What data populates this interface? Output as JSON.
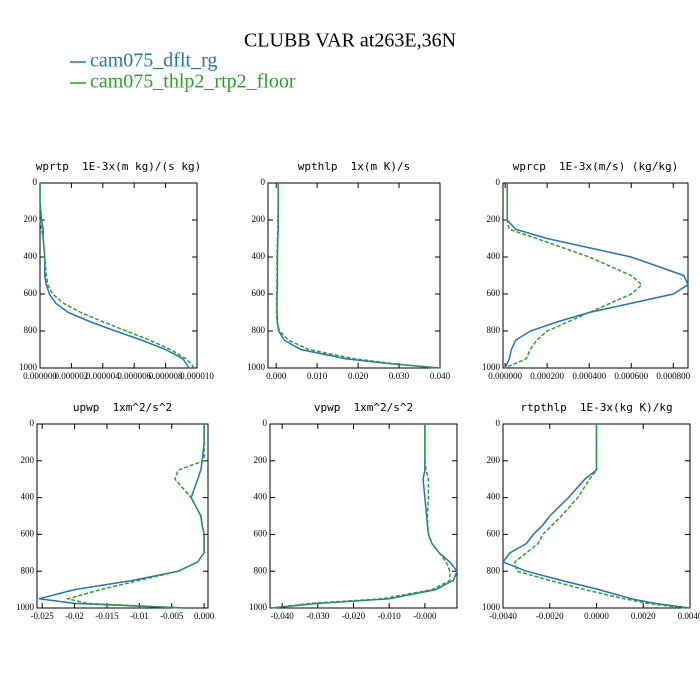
{
  "title": "CLUBB VAR at263E,36N",
  "series": [
    {
      "name": "cam075_dflt_rg",
      "color": "#1f77b4",
      "style": "solid"
    },
    {
      "name": "cam075_thlp2_rtp2_floor",
      "color": "#2ca02c",
      "style": "dashed"
    }
  ],
  "chart_data": [
    {
      "type": "line",
      "title": "wprtp  1E-3x(m kg)/(s kg)",
      "y": [
        0,
        100,
        200,
        250,
        300,
        400,
        500,
        550,
        600,
        650,
        700,
        750,
        800,
        850,
        900,
        950,
        975,
        1000
      ],
      "series": [
        {
          "values": [
            0,
            0,
            1e-07,
            2e-07,
            2e-07,
            3e-07,
            3e-07,
            4e-07,
            6e-07,
            1e-06,
            1.8e-06,
            3.2e-06,
            4.8e-06,
            6.5e-06,
            8e-06,
            9.1e-06,
            9.3e-06,
            9.5e-06
          ]
        },
        {
          "values": [
            0,
            0,
            0,
            1e-07,
            2e-07,
            3e-07,
            4e-07,
            5e-07,
            8e-07,
            1.5e-06,
            2.6e-06,
            4e-06,
            5.5e-06,
            7e-06,
            8.3e-06,
            9.3e-06,
            9.6e-06,
            9.8e-06
          ]
        }
      ],
      "xlim": [
        0,
        1e-05
      ],
      "ylim": [
        1000,
        0
      ],
      "xticks": [
        {
          "value": 0,
          "label": "0.000000"
        },
        {
          "value": 2e-06,
          "label": "0.000002"
        },
        {
          "value": 4e-06,
          "label": "0.000004"
        },
        {
          "value": 6e-06,
          "label": "0.000006"
        },
        {
          "value": 8e-06,
          "label": "0.000008"
        },
        {
          "value": 1e-05,
          "label": "0.000010"
        }
      ],
      "yticks": [
        0,
        200,
        400,
        600,
        800,
        1000
      ]
    },
    {
      "type": "line",
      "title": "wpthlp  1x(m K)/s",
      "y": [
        0,
        100,
        200,
        250,
        300,
        400,
        500,
        550,
        600,
        650,
        700,
        750,
        800,
        850,
        900,
        950,
        975,
        1000
      ],
      "series": [
        {
          "values": [
            0.0005,
            0.0005,
            0.0005,
            0.0005,
            0.0004,
            0.0003,
            0.0003,
            0.0003,
            0.0002,
            0.0002,
            0.0002,
            0.0003,
            0.0006,
            0.002,
            0.006,
            0.017,
            0.027,
            0.04
          ]
        },
        {
          "values": [
            0.0005,
            0.0005,
            0.0004,
            0.0004,
            0.0003,
            0.0002,
            0.0002,
            0.0002,
            0.0001,
            0.0001,
            0.0001,
            0.0002,
            0.0008,
            0.003,
            0.008,
            0.019,
            0.028,
            0.039
          ]
        }
      ],
      "xlim": [
        -0.002,
        0.04
      ],
      "ylim": [
        1000,
        0
      ],
      "xticks": [
        {
          "value": 0,
          "label": "0.000"
        },
        {
          "value": 0.01,
          "label": "0.010"
        },
        {
          "value": 0.02,
          "label": "0.020"
        },
        {
          "value": 0.03,
          "label": "0.030"
        },
        {
          "value": 0.04,
          "label": "0.040"
        }
      ],
      "yticks": [
        0,
        200,
        400,
        600,
        800,
        1000
      ]
    },
    {
      "type": "line",
      "title": "wprcp  1E-3x(m/s) (kg/kg)",
      "y": [
        0,
        100,
        200,
        250,
        300,
        400,
        500,
        550,
        600,
        650,
        700,
        750,
        800,
        850,
        900,
        950,
        975,
        1000
      ],
      "series": [
        {
          "values": [
            1e-05,
            1e-05,
            1e-05,
            5e-05,
            0.0002,
            0.0006,
            0.00085,
            0.00087,
            0.0008,
            0.0006,
            0.0004,
            0.00025,
            0.00012,
            5e-05,
            3e-05,
            2e-05,
            1e-05,
            0
          ]
        },
        {
          "values": [
            1e-05,
            1e-05,
            1e-05,
            2e-05,
            0.00015,
            0.0004,
            0.0006,
            0.00065,
            0.0006,
            0.0005,
            0.0004,
            0.0003,
            0.0002,
            0.00015,
            0.00012,
            0.0001,
            5e-05,
            0
          ]
        }
      ],
      "xlim": [
        -1e-05,
        0.00087
      ],
      "ylim": [
        1000,
        0
      ],
      "xticks": [
        {
          "value": 0,
          "label": "0.000000"
        },
        {
          "value": 0.0002,
          "label": "0.000200"
        },
        {
          "value": 0.0004,
          "label": "0.000400"
        },
        {
          "value": 0.0006,
          "label": "0.000600"
        },
        {
          "value": 0.0008,
          "label": "0.000800"
        }
      ],
      "yticks": [
        0,
        200,
        400,
        600,
        800,
        1000
      ]
    },
    {
      "type": "line",
      "title": "upwp  1xm^2/s^2",
      "y": [
        0,
        100,
        200,
        250,
        300,
        400,
        500,
        550,
        600,
        650,
        700,
        750,
        800,
        850,
        900,
        950,
        975,
        1000
      ],
      "series": [
        {
          "values": [
            0,
            0,
            -0.0003,
            -0.0005,
            -0.001,
            -0.002,
            -0.0005,
            -0.0003,
            0,
            0,
            0,
            -0.001,
            -0.004,
            -0.011,
            -0.02,
            -0.0255,
            -0.02,
            -0.003
          ]
        },
        {
          "values": [
            0,
            0,
            0,
            -0.004,
            -0.0045,
            -0.002,
            -0.0005,
            -0.0003,
            0,
            0,
            0,
            -0.001,
            -0.004,
            -0.01,
            -0.016,
            -0.021,
            -0.018,
            -0.003
          ]
        }
      ],
      "xlim": [
        -0.0258,
        0.0006
      ],
      "ylim": [
        1000,
        0
      ],
      "xticks": [
        -0.025,
        -0.02,
        -0.015,
        -0.01,
        -0.005,
        {
          "value": 0,
          "label": "0.000"
        }
      ],
      "yticks": [
        0,
        200,
        400,
        600,
        800,
        1000
      ]
    },
    {
      "type": "line",
      "title": "vpwp  1xm^2/s^2",
      "y": [
        0,
        100,
        200,
        250,
        300,
        400,
        500,
        550,
        600,
        650,
        700,
        750,
        800,
        850,
        900,
        950,
        975,
        1000
      ],
      "series": [
        {
          "values": [
            0,
            0,
            0,
            0,
            -0.0005,
            0,
            0.0005,
            0.0007,
            0.001,
            0.002,
            0.004,
            0.007,
            0.009,
            0.008,
            0.003,
            -0.01,
            -0.03,
            -0.043
          ]
        },
        {
          "values": [
            0,
            0,
            0,
            0.0003,
            0.001,
            0.001,
            0.0007,
            0.0008,
            0.001,
            0.002,
            0.004,
            0.006,
            0.007,
            0.007,
            0.002,
            -0.012,
            -0.032,
            -0.043
          ]
        }
      ],
      "xlim": [
        -0.0434,
        0.009
      ],
      "ylim": [
        1000,
        0
      ],
      "xticks": [
        {
          "value": -0.04,
          "label": "-0.040"
        },
        {
          "value": -0.03,
          "label": "-0.030"
        },
        {
          "value": -0.02,
          "label": "-0.020"
        },
        {
          "value": -0.01,
          "label": "-0.010"
        },
        {
          "value": 0,
          "label": "-0.000"
        }
      ],
      "yticks": [
        0,
        200,
        400,
        600,
        800,
        1000
      ]
    },
    {
      "type": "line",
      "title": "rtpthlp  1E-3x(kg K)/kg",
      "y": [
        0,
        100,
        200,
        250,
        300,
        400,
        500,
        550,
        600,
        650,
        700,
        750,
        800,
        850,
        900,
        950,
        975,
        1000
      ],
      "series": [
        {
          "values": [
            0,
            0,
            0,
            0,
            -0.0005,
            -0.0012,
            -0.002,
            -0.0023,
            -0.0027,
            -0.003,
            -0.0037,
            -0.004,
            -0.003,
            -0.0015,
            0.0001,
            0.0015,
            0.0025,
            0.004
          ]
        },
        {
          "values": [
            0,
            0,
            0,
            0,
            -0.0003,
            -0.0008,
            -0.0015,
            -0.0019,
            -0.0023,
            -0.0025,
            -0.003,
            -0.0035,
            -0.0034,
            -0.002,
            -0.0005,
            0.0012,
            0.0022,
            0.0038
          ]
        }
      ],
      "xlim": [
        -0.004,
        0.004
      ],
      "ylim": [
        1000,
        0
      ],
      "xticks": [
        {
          "value": -0.004,
          "label": "-0.0040"
        },
        {
          "value": -0.002,
          "label": "-0.0020"
        },
        {
          "value": 0,
          "label": "0.0000"
        },
        {
          "value": 0.002,
          "label": "0.0020"
        },
        {
          "value": 0.004,
          "label": "0.0040"
        }
      ],
      "yticks": [
        0,
        200,
        400,
        600,
        800,
        1000
      ]
    }
  ]
}
